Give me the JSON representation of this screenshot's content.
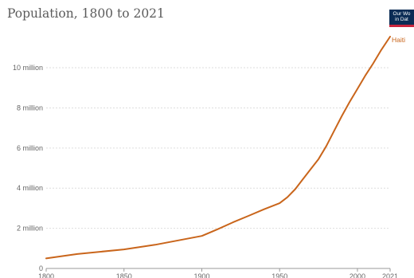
{
  "chart_data": {
    "type": "line",
    "title": "Population, 1800 to 2021",
    "xlabel": "",
    "ylabel": "",
    "x": [
      1800,
      1820,
      1850,
      1870,
      1900,
      1910,
      1920,
      1930,
      1940,
      1950,
      1955,
      1960,
      1965,
      1970,
      1975,
      1980,
      1985,
      1990,
      1995,
      2000,
      2005,
      2010,
      2015,
      2021
    ],
    "series": [
      {
        "name": "Haiti",
        "color": "#c9651b",
        "values": [
          0.5,
          0.72,
          0.95,
          1.18,
          1.62,
          1.95,
          2.3,
          2.62,
          2.95,
          3.25,
          3.55,
          3.95,
          4.45,
          4.95,
          5.45,
          6.1,
          6.85,
          7.6,
          8.3,
          8.95,
          9.6,
          10.2,
          10.85,
          11.55
        ]
      }
    ],
    "xlim": [
      1800,
      2021
    ],
    "ylim": [
      0,
      11.55
    ],
    "x_ticks": [
      1800,
      1850,
      1900,
      1950,
      2000,
      2021
    ],
    "y_ticks": [
      {
        "value": 0,
        "label": "0"
      },
      {
        "value": 2,
        "label": "2 million"
      },
      {
        "value": 4,
        "label": "4 million"
      },
      {
        "value": 6,
        "label": "6 million"
      },
      {
        "value": 8,
        "label": "8 million"
      },
      {
        "value": 10,
        "label": "10 million"
      }
    ],
    "grid": true,
    "legend": "end-of-line label"
  },
  "logo": {
    "line1": "Our Wo",
    "line2": "in Dat"
  },
  "colors": {
    "gridline": "#dddddd",
    "axis": "#999999",
    "logo_bg": "#0b2c55",
    "logo_accent": "#c9253d"
  }
}
